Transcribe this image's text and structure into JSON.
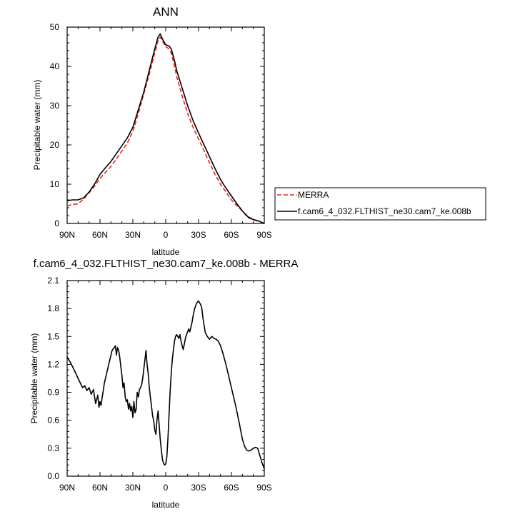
{
  "chart_data": [
    {
      "type": "line",
      "title": "ANN",
      "xlabel": "latitude",
      "ylabel": "Precipitable water (mm)",
      "xlim": [
        90,
        -90
      ],
      "ylim": [
        0,
        50
      ],
      "xticks": [
        90,
        60,
        30,
        0,
        -30,
        -60,
        -90
      ],
      "xtick_labels": [
        "90N",
        "60N",
        "30N",
        "0",
        "30S",
        "60S",
        "90S"
      ],
      "yticks": [
        0,
        10,
        20,
        30,
        40,
        50
      ],
      "ytick_labels": [
        "0",
        "10",
        "20",
        "30",
        "40",
        "50"
      ],
      "legend": {
        "placement": "right-bottom-outside",
        "entries": [
          "MERRA",
          "f.cam6_4_032.FLTHIST_ne30.cam7_ke.008b"
        ]
      },
      "series": [
        {
          "name": "MERRA",
          "color": "#e8261c",
          "style": "dashed",
          "x": [
            90,
            85,
            80,
            75,
            70,
            65,
            60,
            55,
            50,
            45,
            40,
            35,
            30,
            25,
            20,
            15,
            10,
            7,
            5,
            3,
            0,
            -3,
            -5,
            -8,
            -10,
            -15,
            -20,
            -25,
            -30,
            -35,
            -40,
            -45,
            -50,
            -55,
            -60,
            -65,
            -70,
            -75,
            -80,
            -85,
            -90
          ],
          "values": [
            4.5,
            4.8,
            5.0,
            6.2,
            7.8,
            9.5,
            11.5,
            13.0,
            14.5,
            16.5,
            18.5,
            20.5,
            23.5,
            28,
            33,
            38,
            43.5,
            46.5,
            47.5,
            46.5,
            45,
            44.5,
            43.5,
            40,
            37.5,
            32.5,
            28,
            24.5,
            21.5,
            18.5,
            15.5,
            12.5,
            10,
            8,
            6.0,
            4.5,
            3.2,
            1.5,
            0.9,
            0.6,
            0.0
          ]
        },
        {
          "name": "f.cam6_4_032.FLTHIST_ne30.cam7_ke.008b",
          "color": "#000000",
          "style": "solid",
          "x": [
            90,
            85,
            80,
            75,
            70,
            65,
            60,
            55,
            50,
            45,
            40,
            35,
            30,
            25,
            20,
            15,
            10,
            7,
            5,
            3,
            0,
            -3,
            -5,
            -8,
            -10,
            -15,
            -20,
            -25,
            -30,
            -35,
            -40,
            -45,
            -50,
            -55,
            -60,
            -65,
            -70,
            -75,
            -80,
            -85,
            -90
          ],
          "values": [
            5.8,
            6.0,
            6.0,
            6.5,
            8.0,
            10.0,
            12.5,
            14.2,
            15.8,
            17.8,
            19.8,
            21.8,
            24.5,
            29,
            33.5,
            39,
            44.5,
            47.5,
            48.3,
            47,
            45.5,
            45.2,
            44.5,
            41.5,
            39,
            34.5,
            30,
            26.2,
            23,
            20,
            17,
            14,
            11.2,
            9,
            7.0,
            5.0,
            3.2,
            1.7,
            1.0,
            0.6,
            0.0
          ]
        }
      ]
    },
    {
      "type": "line",
      "title": "f.cam6_4_032.FLTHIST_ne30.cam7_ke.008b - MERRA",
      "xlabel": "latitude",
      "ylabel": "Precipitable water (mm)",
      "xlim": [
        90,
        -90
      ],
      "ylim": [
        0,
        2.1
      ],
      "xticks": [
        90,
        60,
        30,
        0,
        -30,
        -60,
        -90
      ],
      "xtick_labels": [
        "90N",
        "60N",
        "30N",
        "0",
        "30S",
        "60S",
        "90S"
      ],
      "yticks": [
        0,
        0.3,
        0.6,
        0.9,
        1.2,
        1.5,
        1.8,
        2.1
      ],
      "ytick_labels": [
        "0.0",
        "0.3",
        "0.6",
        "0.9",
        "1.2",
        "1.5",
        "1.8",
        "2.1"
      ],
      "series": [
        {
          "name": "f.cam6_4_032.FLTHIST_ne30.cam7_ke.008b - MERRA",
          "color": "#000000",
          "style": "solid",
          "x": [
            90,
            87,
            84,
            82,
            80,
            78,
            76,
            74,
            72,
            70,
            68,
            66,
            64,
            62,
            61,
            60,
            59,
            58,
            57,
            56,
            55,
            53,
            51,
            49,
            47,
            46,
            45,
            44,
            43,
            42,
            41,
            40,
            39,
            38,
            37,
            36,
            35,
            34,
            33,
            32,
            31,
            30,
            29,
            28,
            27,
            26,
            25,
            24,
            23,
            22,
            21,
            20,
            19,
            18,
            17,
            16,
            15,
            14,
            13,
            12,
            11,
            10,
            9,
            8,
            7,
            6,
            5,
            4,
            3,
            2,
            1,
            0,
            -1,
            -2,
            -3,
            -4,
            -5,
            -6,
            -7,
            -8,
            -9,
            -10,
            -11,
            -12,
            -13,
            -14,
            -15,
            -16,
            -17,
            -18,
            -19,
            -20,
            -21,
            -22,
            -23,
            -24,
            -25,
            -26,
            -27,
            -28,
            -29,
            -30,
            -31,
            -32,
            -33,
            -34,
            -35,
            -36,
            -37,
            -38,
            -40,
            -42,
            -44,
            -46,
            -48,
            -50,
            -52,
            -55,
            -58,
            -61,
            -64,
            -67,
            -70,
            -72,
            -74,
            -76,
            -78,
            -80,
            -82,
            -84,
            -86,
            -88,
            -90
          ],
          "values": [
            1.28,
            1.22,
            1.15,
            1.1,
            1.05,
            1.0,
            0.95,
            0.97,
            0.92,
            0.95,
            0.88,
            0.93,
            0.78,
            0.87,
            0.74,
            0.8,
            0.76,
            0.85,
            0.92,
            1.0,
            1.05,
            1.15,
            1.25,
            1.35,
            1.38,
            1.4,
            1.3,
            1.38,
            1.35,
            1.28,
            1.18,
            1.08,
            0.95,
            1.0,
            0.85,
            0.8,
            0.82,
            0.72,
            0.78,
            0.7,
            0.75,
            0.63,
            0.8,
            0.68,
            0.72,
            0.9,
            0.85,
            0.93,
            0.95,
            0.98,
            1.05,
            1.15,
            1.25,
            1.35,
            1.2,
            1.1,
            0.95,
            0.85,
            0.75,
            0.65,
            0.6,
            0.5,
            0.45,
            0.6,
            0.7,
            0.55,
            0.4,
            0.28,
            0.18,
            0.14,
            0.12,
            0.13,
            0.2,
            0.4,
            0.65,
            0.9,
            1.1,
            1.25,
            1.35,
            1.45,
            1.5,
            1.52,
            1.5,
            1.48,
            1.52,
            1.45,
            1.4,
            1.36,
            1.42,
            1.48,
            1.52,
            1.55,
            1.58,
            1.55,
            1.6,
            1.65,
            1.72,
            1.78,
            1.82,
            1.85,
            1.87,
            1.88,
            1.86,
            1.84,
            1.8,
            1.7,
            1.62,
            1.55,
            1.52,
            1.5,
            1.47,
            1.5,
            1.48,
            1.47,
            1.45,
            1.4,
            1.33,
            1.2,
            1.05,
            0.9,
            0.75,
            0.58,
            0.4,
            0.32,
            0.28,
            0.27,
            0.28,
            0.3,
            0.31,
            0.3,
            0.22,
            0.14,
            0.08
          ]
        }
      ]
    }
  ]
}
